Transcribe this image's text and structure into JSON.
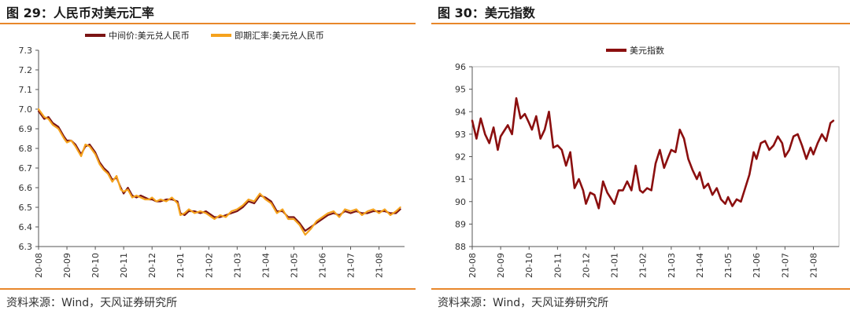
{
  "left": {
    "figure_title": "图 29：人民币对美元汇率",
    "source": "资料来源：Wind，天风证券研究所"
  },
  "right": {
    "figure_title": "图 30：美元指数",
    "source": "资料来源：Wind，天风证券研究所"
  },
  "chart_data": [
    {
      "type": "line",
      "title": "",
      "xlabel": "",
      "ylabel": "",
      "ylim": [
        6.3,
        7.3
      ],
      "yticks": [
        "6.3",
        "6.4",
        "6.5",
        "6.6",
        "6.7",
        "6.8",
        "6.9",
        "7.0",
        "7.1",
        "7.2",
        "7.3"
      ],
      "xticks": [
        "20-08",
        "20-09",
        "20-10",
        "20-11",
        "20-12",
        "21-01",
        "21-02",
        "21-03",
        "21-04",
        "21-05",
        "21-06",
        "21-07",
        "21-08"
      ],
      "x_range": [
        0,
        12.9
      ],
      "grid": false,
      "legend_position": "top",
      "series": [
        {
          "name": "中间价:美元兑人民币",
          "color": "#7b1414",
          "x": [
            0,
            0.2,
            0.35,
            0.5,
            0.7,
            0.9,
            1.0,
            1.15,
            1.3,
            1.5,
            1.65,
            1.8,
            1.95,
            2.0,
            2.15,
            2.3,
            2.45,
            2.6,
            2.75,
            2.9,
            3.0,
            3.15,
            3.3,
            3.45,
            3.6,
            3.75,
            3.9,
            4.0,
            4.15,
            4.3,
            4.5,
            4.7,
            4.9,
            5.0,
            5.15,
            5.3,
            5.5,
            5.7,
            5.9,
            6.0,
            6.2,
            6.4,
            6.6,
            6.8,
            7.0,
            7.2,
            7.4,
            7.6,
            7.8,
            8.0,
            8.2,
            8.4,
            8.6,
            8.8,
            9.0,
            9.2,
            9.4,
            9.6,
            9.8,
            10.0,
            10.2,
            10.4,
            10.6,
            10.8,
            11.0,
            11.2,
            11.4,
            11.6,
            11.8,
            12.0,
            12.2,
            12.4,
            12.6,
            12.75
          ],
          "values": [
            6.99,
            6.95,
            6.96,
            6.93,
            6.91,
            6.86,
            6.84,
            6.84,
            6.82,
            6.77,
            6.81,
            6.82,
            6.79,
            6.78,
            6.73,
            6.7,
            6.68,
            6.64,
            6.65,
            6.6,
            6.57,
            6.6,
            6.56,
            6.55,
            6.56,
            6.55,
            6.54,
            6.54,
            6.53,
            6.53,
            6.54,
            6.54,
            6.53,
            6.47,
            6.46,
            6.48,
            6.48,
            6.47,
            6.48,
            6.47,
            6.45,
            6.45,
            6.46,
            6.47,
            6.48,
            6.5,
            6.53,
            6.52,
            6.56,
            6.55,
            6.53,
            6.48,
            6.48,
            6.45,
            6.45,
            6.42,
            6.38,
            6.4,
            6.42,
            6.44,
            6.46,
            6.47,
            6.46,
            6.48,
            6.47,
            6.48,
            6.47,
            6.47,
            6.48,
            6.48,
            6.48,
            6.47,
            6.47,
            6.49
          ]
        },
        {
          "name": "即期汇率:美元兑人民币",
          "color": "#f5a21d",
          "x": [
            0,
            0.2,
            0.35,
            0.5,
            0.7,
            0.9,
            1.0,
            1.15,
            1.3,
            1.5,
            1.65,
            1.8,
            1.95,
            2.0,
            2.15,
            2.3,
            2.45,
            2.6,
            2.75,
            2.9,
            3.0,
            3.15,
            3.3,
            3.45,
            3.6,
            3.75,
            3.9,
            4.0,
            4.15,
            4.3,
            4.5,
            4.7,
            4.9,
            5.0,
            5.15,
            5.3,
            5.5,
            5.7,
            5.9,
            6.0,
            6.2,
            6.4,
            6.6,
            6.8,
            7.0,
            7.2,
            7.4,
            7.6,
            7.8,
            8.0,
            8.2,
            8.4,
            8.6,
            8.8,
            9.0,
            9.2,
            9.4,
            9.6,
            9.8,
            10.0,
            10.2,
            10.4,
            10.6,
            10.8,
            11.0,
            11.2,
            11.4,
            11.6,
            11.8,
            12.0,
            12.2,
            12.4,
            12.6,
            12.75
          ],
          "values": [
            7.0,
            6.96,
            6.95,
            6.92,
            6.9,
            6.85,
            6.83,
            6.84,
            6.81,
            6.76,
            6.82,
            6.81,
            6.78,
            6.77,
            6.72,
            6.69,
            6.67,
            6.63,
            6.66,
            6.59,
            6.58,
            6.59,
            6.55,
            6.56,
            6.55,
            6.54,
            6.54,
            6.55,
            6.53,
            6.54,
            6.53,
            6.55,
            6.52,
            6.46,
            6.47,
            6.49,
            6.47,
            6.48,
            6.47,
            6.46,
            6.44,
            6.46,
            6.45,
            6.48,
            6.49,
            6.51,
            6.54,
            6.53,
            6.57,
            6.54,
            6.52,
            6.47,
            6.49,
            6.44,
            6.44,
            6.41,
            6.36,
            6.39,
            6.43,
            6.45,
            6.47,
            6.48,
            6.45,
            6.49,
            6.48,
            6.49,
            6.46,
            6.48,
            6.49,
            6.47,
            6.49,
            6.46,
            6.48,
            6.5
          ]
        }
      ]
    },
    {
      "type": "line",
      "title": "",
      "xlabel": "",
      "ylabel": "",
      "ylim": [
        88,
        96
      ],
      "yticks": [
        "88",
        "89",
        "90",
        "91",
        "92",
        "93",
        "94",
        "95",
        "96"
      ],
      "xticks": [
        "20-08",
        "20-09",
        "20-10",
        "20-11",
        "20-12",
        "21-01",
        "21-02",
        "21-03",
        "21-04",
        "21-05",
        "21-06",
        "21-07",
        "21-08"
      ],
      "x_range": [
        0,
        12.9
      ],
      "grid": false,
      "legend_position": "top",
      "series": [
        {
          "name": "美元指数",
          "color": "#8b0f0f",
          "x": [
            0,
            0.15,
            0.3,
            0.45,
            0.6,
            0.75,
            0.9,
            1.0,
            1.1,
            1.25,
            1.4,
            1.55,
            1.7,
            1.85,
            2.0,
            2.1,
            2.25,
            2.4,
            2.55,
            2.7,
            2.85,
            3.0,
            3.15,
            3.3,
            3.45,
            3.6,
            3.75,
            3.9,
            4.0,
            4.15,
            4.3,
            4.45,
            4.6,
            4.75,
            4.9,
            5.0,
            5.15,
            5.3,
            5.45,
            5.6,
            5.75,
            5.9,
            6.0,
            6.15,
            6.3,
            6.45,
            6.6,
            6.75,
            6.9,
            7.0,
            7.15,
            7.3,
            7.45,
            7.6,
            7.75,
            7.9,
            8.0,
            8.15,
            8.3,
            8.45,
            8.6,
            8.75,
            8.9,
            9.0,
            9.15,
            9.3,
            9.45,
            9.6,
            9.75,
            9.9,
            10.0,
            10.15,
            10.3,
            10.45,
            10.6,
            10.75,
            10.9,
            11.0,
            11.15,
            11.3,
            11.45,
            11.6,
            11.75,
            11.9,
            12.0,
            12.15,
            12.3,
            12.45,
            12.6,
            12.7
          ],
          "values": [
            93.6,
            92.8,
            93.7,
            93.0,
            92.6,
            93.3,
            92.3,
            92.9,
            93.1,
            93.4,
            93.0,
            94.6,
            93.7,
            93.9,
            93.5,
            93.2,
            93.8,
            92.8,
            93.2,
            94.0,
            92.4,
            92.5,
            92.3,
            91.6,
            92.2,
            90.6,
            91.0,
            90.5,
            89.9,
            90.4,
            90.3,
            89.7,
            90.9,
            90.4,
            90.1,
            89.9,
            90.5,
            90.5,
            90.9,
            90.5,
            91.6,
            90.5,
            90.4,
            90.6,
            90.5,
            91.7,
            92.3,
            91.5,
            92.0,
            92.3,
            92.2,
            93.2,
            92.8,
            91.9,
            91.4,
            91.0,
            91.3,
            90.6,
            90.8,
            90.3,
            90.6,
            90.1,
            89.9,
            90.2,
            89.8,
            90.1,
            90.0,
            90.6,
            91.2,
            92.2,
            91.9,
            92.6,
            92.7,
            92.3,
            92.5,
            92.9,
            92.6,
            92.0,
            92.3,
            92.9,
            93.0,
            92.5,
            91.9,
            92.4,
            92.1,
            92.6,
            93.0,
            92.7,
            93.5,
            93.6
          ]
        }
      ]
    }
  ]
}
